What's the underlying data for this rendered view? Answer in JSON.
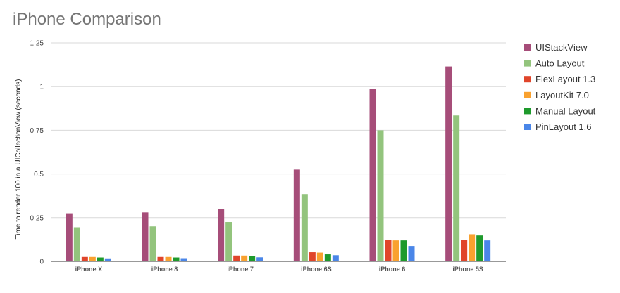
{
  "chart_data": {
    "type": "bar",
    "title": "iPhone Comparison",
    "xlabel": "",
    "ylabel": "Time to  render 100 in a UICollectionView (seconds)",
    "ylim": [
      0,
      1.25
    ],
    "yticks": [
      0,
      0.25,
      0.5,
      0.75,
      1,
      1.25
    ],
    "ytick_labels": [
      "0",
      "0.25",
      "0.5",
      "0.75",
      "1",
      "1.25"
    ],
    "grid": true,
    "legend_position": "right",
    "categories": [
      "iPhone X",
      "iPhone 8",
      "iPhone 7",
      "iPhone 6S",
      "iPhone 6",
      "iPhone 5S"
    ],
    "series": [
      {
        "name": "UIStackView",
        "color": "#A64D79",
        "values": [
          0.275,
          0.28,
          0.3,
          0.525,
          0.985,
          1.115
        ]
      },
      {
        "name": "Auto Layout",
        "color": "#93C47D",
        "values": [
          0.195,
          0.2,
          0.225,
          0.385,
          0.75,
          0.835
        ]
      },
      {
        "name": "FlexLayout 1.3",
        "color": "#E0452B",
        "values": [
          0.025,
          0.025,
          0.033,
          0.052,
          0.122,
          0.122
        ]
      },
      {
        "name": "LayoutKit 7.0",
        "color": "#F9A12F",
        "values": [
          0.025,
          0.025,
          0.033,
          0.05,
          0.12,
          0.155
        ]
      },
      {
        "name": "Manual Layout",
        "color": "#1E9A2C",
        "values": [
          0.022,
          0.022,
          0.03,
          0.04,
          0.12,
          0.148
        ]
      },
      {
        "name": "PinLayout 1.6",
        "color": "#4A86E8",
        "values": [
          0.017,
          0.018,
          0.023,
          0.035,
          0.088,
          0.12
        ]
      }
    ]
  }
}
